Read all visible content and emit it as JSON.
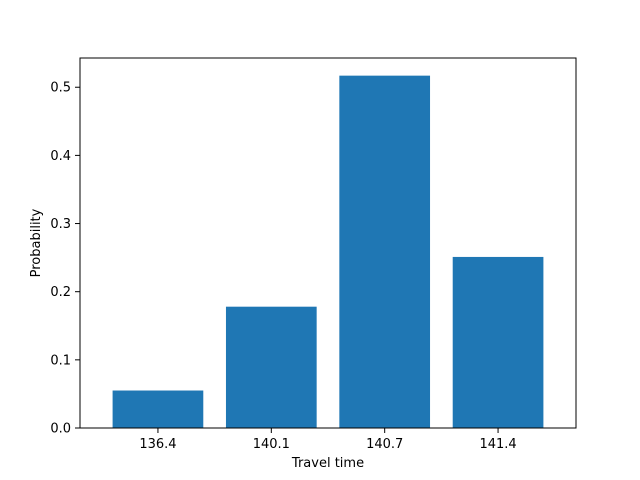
{
  "chart_data": {
    "type": "bar",
    "title": "",
    "xlabel": "Travel time",
    "ylabel": "Probability",
    "categories": [
      "136.4",
      "140.1",
      "140.7",
      "141.4"
    ],
    "values": [
      0.055,
      0.178,
      0.517,
      0.251
    ],
    "ylim": [
      0,
      0.5429
    ],
    "yticks": [
      0.0,
      0.1,
      0.2,
      0.3,
      0.4,
      0.5
    ],
    "ytick_labels": [
      "0.0",
      "0.1",
      "0.2",
      "0.3",
      "0.4",
      "0.5"
    ],
    "grid": false,
    "legend": "none",
    "bar_color": "#1f77b4"
  }
}
